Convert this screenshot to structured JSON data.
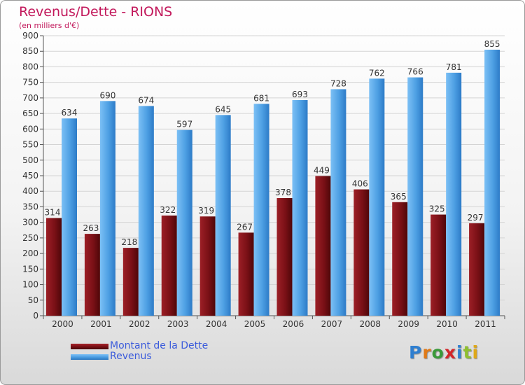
{
  "title": "Revenus/Dette - RIONS",
  "subtitle": "(en milliers d'€)",
  "legend": {
    "items": [
      {
        "label": "Montant de la Dette",
        "color": "#7a1016"
      },
      {
        "label": "Revenus",
        "color": "#4d9fe3"
      }
    ]
  },
  "logo": {
    "text": "Proxiti"
  },
  "chart_data": {
    "type": "bar",
    "categories": [
      "2000",
      "2001",
      "2002",
      "2003",
      "2004",
      "2005",
      "2006",
      "2007",
      "2008",
      "2009",
      "2010",
      "2011"
    ],
    "series": [
      {
        "name": "Montant de la Dette",
        "color": "#7a1016",
        "values": [
          314,
          263,
          218,
          322,
          319,
          267,
          378,
          449,
          406,
          365,
          325,
          297
        ]
      },
      {
        "name": "Revenus",
        "color": "#4d9fe3",
        "values": [
          634,
          690,
          674,
          597,
          645,
          681,
          693,
          728,
          762,
          766,
          781,
          855
        ]
      }
    ],
    "ylim": [
      0,
      900
    ],
    "yticks": [
      0,
      50,
      100,
      150,
      200,
      250,
      300,
      350,
      400,
      450,
      500,
      550,
      600,
      650,
      700,
      750,
      800,
      850,
      900
    ],
    "grid": true,
    "legend_position": "bottom-left"
  }
}
